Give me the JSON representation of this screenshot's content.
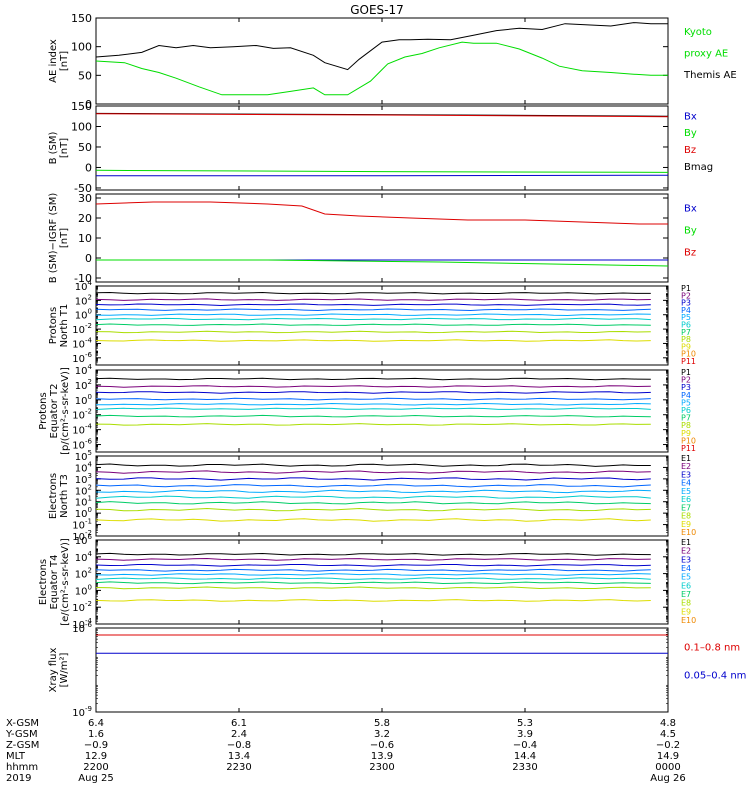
{
  "title": "GOES-17",
  "colors": {
    "black": "#000000",
    "green": "#00dd00",
    "blue": "#0000cc",
    "red": "#dd0000",
    "darkred": "#990000",
    "P": [
      "#000000",
      "#7a007a",
      "#0000cc",
      "#0066ff",
      "#00aaff",
      "#00cccc",
      "#00cc66",
      "#aadd00",
      "#dddd00",
      "#ee8800",
      "#dd0000"
    ],
    "E": [
      "#000000",
      "#7a007a",
      "#0000cc",
      "#0066ff",
      "#00aaff",
      "#00cccc",
      "#00cc66",
      "#aadd00",
      "#dddd00",
      "#ee8800",
      "#990000"
    ]
  },
  "chart_data": [
    {
      "type": "line",
      "panel": "ae",
      "ylabel": [
        "AE index",
        "[nT]"
      ],
      "ylim": [
        0,
        150
      ],
      "yticks": [
        "0",
        "50",
        "100",
        "150"
      ],
      "ytickvals": [
        0,
        50,
        100,
        150
      ],
      "legend": [
        {
          "text": "Kyoto",
          "color": "#00dd00"
        },
        {
          "text": "proxy AE",
          "color": "#00dd00"
        },
        {
          "text": "Themis AE",
          "color": "#000000"
        }
      ],
      "series": [
        {
          "name": "Themis AE",
          "color": "#000000",
          "x": [
            0,
            4,
            8,
            11,
            14,
            17,
            20,
            24,
            28,
            31,
            34,
            38,
            40,
            44,
            46,
            50,
            53,
            55,
            58,
            62,
            66,
            70,
            74,
            78,
            82,
            86,
            90,
            94,
            97,
            100
          ],
          "y": [
            82,
            85,
            90,
            102,
            98,
            102,
            98,
            100,
            102,
            97,
            98,
            85,
            72,
            60,
            78,
            108,
            112,
            112,
            113,
            112,
            120,
            128,
            132,
            130,
            140,
            138,
            136,
            142,
            140,
            140
          ]
        },
        {
          "name": "Kyoto proxy AE",
          "color": "#00dd00",
          "x": [
            0,
            5,
            8,
            11,
            14,
            18,
            22,
            26,
            30,
            34,
            38,
            40,
            44,
            48,
            51,
            54,
            57,
            60,
            64,
            66,
            70,
            74,
            78,
            81,
            85,
            90,
            94,
            97,
            100
          ],
          "y": [
            75,
            72,
            62,
            55,
            45,
            30,
            16,
            16,
            16,
            22,
            28,
            16,
            16,
            40,
            70,
            82,
            88,
            98,
            108,
            106,
            106,
            96,
            80,
            66,
            58,
            55,
            52,
            50,
            50
          ]
        }
      ]
    },
    {
      "type": "line",
      "panel": "bsm",
      "ylabel": [
        "B (SM)",
        "[nT]"
      ],
      "ylim": [
        -55,
        150
      ],
      "yticks": [
        "-50",
        "0",
        "50",
        "100",
        "150"
      ],
      "ytickvals": [
        -50,
        0,
        50,
        100,
        150
      ],
      "legend": [
        {
          "text": "Bx",
          "color": "#0000cc"
        },
        {
          "text": "By",
          "color": "#00dd00"
        },
        {
          "text": "Bz",
          "color": "#dd0000"
        },
        {
          "text": "Bmag",
          "color": "#000000"
        }
      ],
      "series": [
        {
          "name": "Bmag",
          "color": "#000000",
          "x": [
            0,
            50,
            100
          ],
          "y": [
            132,
            129,
            125
          ]
        },
        {
          "name": "Bz",
          "color": "#dd0000",
          "x": [
            0,
            50,
            100
          ],
          "y": [
            131,
            128,
            124
          ]
        },
        {
          "name": "By",
          "color": "#00dd00",
          "x": [
            0,
            50,
            100
          ],
          "y": [
            -7,
            -10,
            -12
          ]
        },
        {
          "name": "Bx",
          "color": "#0000cc",
          "x": [
            0,
            50,
            100
          ],
          "y": [
            -20,
            -20,
            -19
          ]
        }
      ]
    },
    {
      "type": "line",
      "panel": "bigrf",
      "ylabel": [
        "B (SM)−IGRF (SM)",
        "[nT]"
      ],
      "ylim": [
        -12,
        32
      ],
      "yticks": [
        "-10",
        "0",
        "10",
        "20",
        "30"
      ],
      "ytickvals": [
        -10,
        0,
        10,
        20,
        30
      ],
      "legend": [
        {
          "text": "Bx",
          "color": "#0000cc"
        },
        {
          "text": "By",
          "color": "#00dd00"
        },
        {
          "text": "Bz",
          "color": "#dd0000"
        }
      ],
      "series": [
        {
          "name": "Bz",
          "color": "#dd0000",
          "x": [
            0,
            10,
            20,
            30,
            36,
            40,
            46,
            55,
            65,
            75,
            85,
            95,
            100
          ],
          "y": [
            27,
            28,
            28,
            27,
            26,
            22,
            21,
            20,
            19,
            19,
            18,
            17,
            17
          ]
        },
        {
          "name": "Bx",
          "color": "#0000cc",
          "x": [
            0,
            50,
            100
          ],
          "y": [
            -1,
            -1,
            -1
          ]
        },
        {
          "name": "By",
          "color": "#00dd00",
          "x": [
            0,
            30,
            60,
            100
          ],
          "y": [
            -1,
            -1,
            -2,
            -4
          ]
        }
      ]
    },
    {
      "type": "line",
      "panel": "protons1",
      "log": true,
      "ylabel": [
        "Protons",
        "North T1"
      ],
      "ylim": [
        -7,
        4
      ],
      "yticks": [
        {
          "b": "10",
          "e": "4",
          "v": 4
        },
        {
          "b": "10",
          "e": "2",
          "v": 2
        },
        {
          "b": "10",
          "e": "0",
          "v": 0
        },
        {
          "b": "10",
          "e": "-2",
          "v": -2
        },
        {
          "b": "10",
          "e": "-4",
          "v": -4
        },
        {
          "b": "10",
          "e": "-6",
          "v": -6
        }
      ],
      "legend": [
        "P1",
        "P2",
        "P3",
        "P4",
        "P5",
        "P6",
        "P7",
        "P8",
        "P9",
        "P10",
        "P11"
      ],
      "series": [
        {
          "name": "P1",
          "y": 3.0
        },
        {
          "name": "P2",
          "y": 2.1
        },
        {
          "name": "P3",
          "y": 1.4
        },
        {
          "name": "P4",
          "y": 0.7
        },
        {
          "name": "P5",
          "y": 0.0
        },
        {
          "name": "P6",
          "y": -0.6
        },
        {
          "name": "P7",
          "y": -1.4
        },
        {
          "name": "P8",
          "y": -2.4
        },
        {
          "name": "P9",
          "y": -3.6
        }
      ]
    },
    {
      "type": "line",
      "panel": "protons2",
      "log": true,
      "ylabel": [
        "Protons",
        "Equator T2",
        "[p/(cm²-s-sr-keV)]"
      ],
      "ylim": [
        -7,
        4
      ],
      "yticks": [
        {
          "b": "10",
          "e": "4",
          "v": 4
        },
        {
          "b": "10",
          "e": "2",
          "v": 2
        },
        {
          "b": "10",
          "e": "0",
          "v": 0
        },
        {
          "b": "10",
          "e": "-2",
          "v": -2
        },
        {
          "b": "10",
          "e": "-4",
          "v": -4
        },
        {
          "b": "10",
          "e": "-6",
          "v": -6
        }
      ],
      "legend": [
        "P1",
        "P2",
        "P3",
        "P4",
        "P5",
        "P6",
        "P7",
        "P8",
        "P9",
        "P10",
        "P11"
      ],
      "series": [
        {
          "name": "P1",
          "y": 2.8
        },
        {
          "name": "P2",
          "y": 1.8
        },
        {
          "name": "P3",
          "y": 1.0
        },
        {
          "name": "P4",
          "y": 0.1
        },
        {
          "name": "P5",
          "y": -0.6
        },
        {
          "name": "P6",
          "y": -1.2
        },
        {
          "name": "P7",
          "y": -2.2
        },
        {
          "name": "P8",
          "y": -3.3
        }
      ]
    },
    {
      "type": "line",
      "panel": "electrons1",
      "log": true,
      "ylabel": [
        "Electrons",
        "North T3"
      ],
      "ylim": [
        -2,
        5
      ],
      "yticks": [
        {
          "b": "10",
          "e": "5",
          "v": 5
        },
        {
          "b": "10",
          "e": "4",
          "v": 4
        },
        {
          "b": "10",
          "e": "3",
          "v": 3
        },
        {
          "b": "10",
          "e": "2",
          "v": 2
        },
        {
          "b": "10",
          "e": "1",
          "v": 1
        },
        {
          "b": "10",
          "e": "0",
          "v": 0
        },
        {
          "b": "10",
          "e": "-1",
          "v": -1
        },
        {
          "b": "10",
          "e": "-2",
          "v": -2
        }
      ],
      "legend": [
        "E1",
        "E2",
        "E3",
        "E4",
        "E5",
        "E6",
        "E7",
        "E8",
        "E9",
        "E10"
      ],
      "series": [
        {
          "name": "E1",
          "y": 4.2
        },
        {
          "name": "E2",
          "y": 3.6
        },
        {
          "name": "E3",
          "y": 3.0
        },
        {
          "name": "E4",
          "y": 2.4
        },
        {
          "name": "E5",
          "y": 1.9
        },
        {
          "name": "E6",
          "y": 1.4
        },
        {
          "name": "E7",
          "y": 0.9
        },
        {
          "name": "E8",
          "y": 0.3
        },
        {
          "name": "E9",
          "y": -0.6
        }
      ]
    },
    {
      "type": "line",
      "panel": "electrons2",
      "log": true,
      "ylabel": [
        "Electrons",
        "Equator T4",
        "[e/(cm²-s-sr-keV)]"
      ],
      "ylim": [
        -4,
        6
      ],
      "yticks": [
        {
          "b": "10",
          "e": "6",
          "v": 6
        },
        {
          "b": "10",
          "e": "4",
          "v": 4
        },
        {
          "b": "10",
          "e": "2",
          "v": 2
        },
        {
          "b": "10",
          "e": "0",
          "v": 0
        },
        {
          "b": "10",
          "e": "-2",
          "v": -2
        },
        {
          "b": "10",
          "e": "-4",
          "v": -4
        }
      ],
      "legend": [
        "E1",
        "E2",
        "E3",
        "E4",
        "E5",
        "E6",
        "E7",
        "E8",
        "E9",
        "E10"
      ],
      "series": [
        {
          "name": "E1",
          "y": 4.3
        },
        {
          "name": "E2",
          "y": 3.7
        },
        {
          "name": "E3",
          "y": 3.0
        },
        {
          "name": "E4",
          "y": 2.4
        },
        {
          "name": "E5",
          "y": 1.9
        },
        {
          "name": "E6",
          "y": 1.4
        },
        {
          "name": "E7",
          "y": 0.9
        },
        {
          "name": "E8",
          "y": 0.3
        },
        {
          "name": "E9",
          "y": -1.2
        }
      ]
    },
    {
      "type": "line",
      "panel": "xray",
      "log": true,
      "ylabel": [
        "Xray flux",
        "[W/m²]"
      ],
      "ylim": [
        -9,
        -6
      ],
      "yticks": [
        {
          "b": "10",
          "e": "-6",
          "v": -6
        },
        {
          "b": "10",
          "e": "-9",
          "v": -9
        }
      ],
      "legend": [
        {
          "text": "0.1–0.8 nm",
          "color": "#dd0000"
        },
        {
          "text": "0.05–0.4 nm",
          "color": "#0000cc"
        }
      ],
      "series": [
        {
          "name": "0.1–0.8 nm",
          "color": "#dd0000",
          "x": [
            0,
            100
          ],
          "y": [
            -6.25,
            -6.25
          ]
        },
        {
          "name": "0.05–0.4 nm",
          "color": "#0000cc",
          "x": [
            0,
            100
          ],
          "y": [
            -6.9,
            -6.9
          ]
        }
      ]
    }
  ],
  "ephemeris": {
    "labels": [
      "X-GSM",
      "Y-GSM",
      "Z-GSM",
      "MLT",
      "hhmm",
      "2019"
    ],
    "columns": [
      {
        "x": 0,
        "values": [
          "6.4",
          "1.6",
          "−0.9",
          "12.9",
          "2200",
          "Aug 25"
        ]
      },
      {
        "x": 25,
        "values": [
          "6.1",
          "2.4",
          "−0.8",
          "13.4",
          "2230",
          ""
        ]
      },
      {
        "x": 50,
        "values": [
          "5.8",
          "3.2",
          "−0.6",
          "13.9",
          "2300",
          ""
        ]
      },
      {
        "x": 75,
        "values": [
          "5.3",
          "3.9",
          "−0.4",
          "14.4",
          "2330",
          ""
        ]
      },
      {
        "x": 100,
        "values": [
          "4.8",
          "4.5",
          "−0.2",
          "14.9",
          "0000",
          "Aug 26"
        ]
      }
    ]
  }
}
